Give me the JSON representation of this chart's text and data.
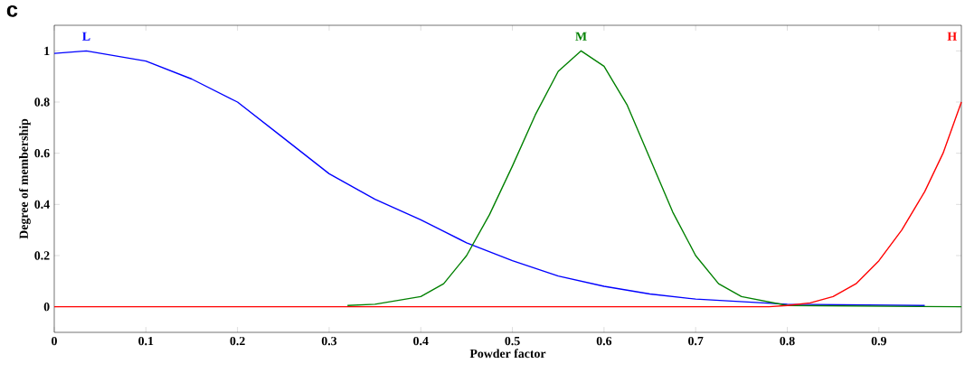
{
  "chart_data": {
    "type": "line",
    "xlabel": "Powder factor",
    "ylabel": "Degree of membership",
    "xlim": [
      0,
      0.99
    ],
    "ylim": [
      -0.1,
      1.1
    ],
    "xticks": [
      0,
      0.1,
      0.2,
      0.3,
      0.4,
      0.5,
      0.6,
      0.7,
      0.8,
      0.9
    ],
    "yticks": [
      0,
      0.2,
      0.4,
      0.6,
      0.8,
      1
    ],
    "grid": false,
    "legend": false,
    "marker": "none",
    "line_style": "solid",
    "series": [
      {
        "name": "L",
        "color": "#0000ff",
        "x": [
          0,
          0.035,
          0.1,
          0.15,
          0.2,
          0.25,
          0.3,
          0.35,
          0.4,
          0.45,
          0.5,
          0.55,
          0.6,
          0.65,
          0.7,
          0.75,
          0.8,
          0.95
        ],
        "values": [
          0.99,
          1.0,
          0.96,
          0.89,
          0.8,
          0.66,
          0.52,
          0.42,
          0.34,
          0.25,
          0.18,
          0.12,
          0.08,
          0.05,
          0.03,
          0.02,
          0.01,
          0.005
        ]
      },
      {
        "name": "M",
        "color": "#008000",
        "x": [
          0.32,
          0.35,
          0.4,
          0.425,
          0.45,
          0.475,
          0.5,
          0.525,
          0.55,
          0.575,
          0.6,
          0.625,
          0.65,
          0.675,
          0.7,
          0.725,
          0.75,
          0.8,
          0.99
        ],
        "values": [
          0.005,
          0.01,
          0.04,
          0.09,
          0.2,
          0.36,
          0.55,
          0.75,
          0.92,
          1.0,
          0.94,
          0.79,
          0.58,
          0.37,
          0.2,
          0.09,
          0.04,
          0.005,
          0
        ]
      },
      {
        "name": "H",
        "color": "#ff0000",
        "x": [
          0,
          0.78,
          0.8,
          0.825,
          0.85,
          0.875,
          0.9,
          0.925,
          0.95,
          0.97,
          0.99
        ],
        "values": [
          0,
          0,
          0.005,
          0.015,
          0.04,
          0.09,
          0.18,
          0.3,
          0.45,
          0.6,
          0.8
        ]
      }
    ],
    "annotations": [
      "c"
    ]
  }
}
